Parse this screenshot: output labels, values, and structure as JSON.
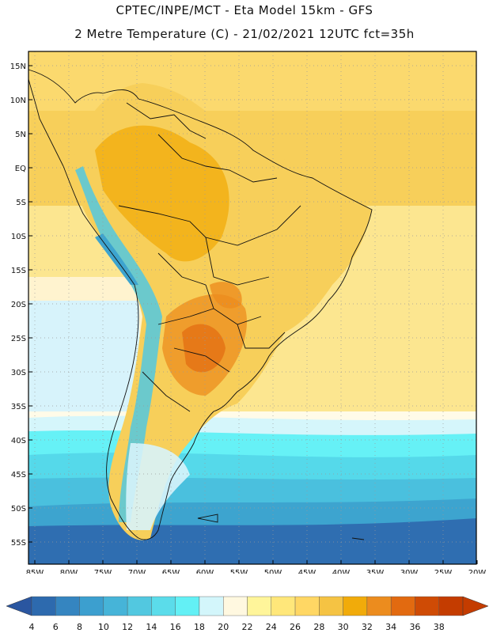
{
  "header": {
    "line1": "CPTEC/INPE/MCT -  Eta Model 15km - GFS",
    "line2": "2 Metre Temperature (C) - 21/02/2021 12UTC fct=35h"
  },
  "map": {
    "lat_labels": [
      "15N",
      "10N",
      "5N",
      "EQ",
      "5S",
      "10S",
      "15S",
      "20S",
      "25S",
      "30S",
      "35S",
      "40S",
      "45S",
      "50S",
      "55S"
    ],
    "lon_labels": [
      "85W",
      "80W",
      "75W",
      "70W",
      "65W",
      "60W",
      "55W",
      "50W",
      "45W",
      "40W",
      "35W",
      "30W",
      "25W",
      "20W"
    ]
  },
  "legend": {
    "values": [
      "4",
      "6",
      "8",
      "10",
      "12",
      "14",
      "16",
      "18",
      "20",
      "22",
      "24",
      "26",
      "28",
      "30",
      "32",
      "34",
      "36",
      "38"
    ],
    "colors": [
      "#2d6aae",
      "#3585c0",
      "#3c9fcf",
      "#46b4d8",
      "#52c8e0",
      "#5bdcea",
      "#63f0f5",
      "#d3f6fb",
      "#fff8e0",
      "#fff59a",
      "#ffe77a",
      "#ffd764",
      "#f5c343",
      "#f1ab0a",
      "#ec8c1e",
      "#e26a10",
      "#cf4b05",
      "#c43c00"
    ]
  }
}
